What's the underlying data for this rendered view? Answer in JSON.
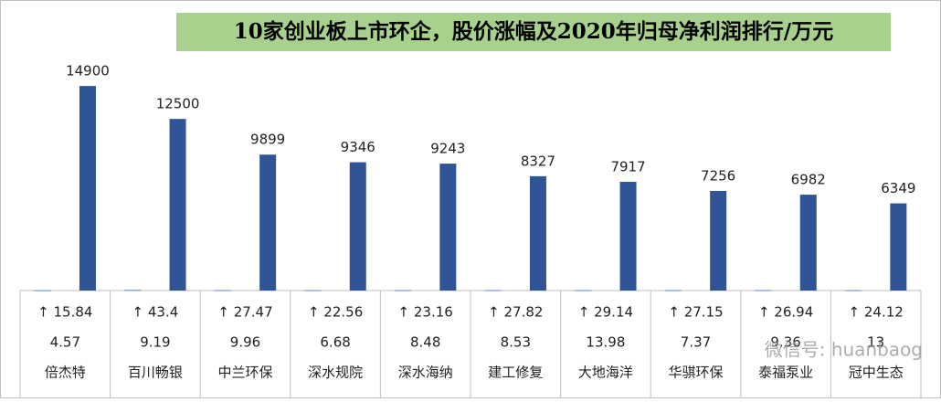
{
  "chart_data": {
    "type": "bar",
    "title": "10家创业板上市环企，股价涨幅及2020年归母净利润排行/万元",
    "categories": [
      "倍杰特",
      "百川畅银",
      "中兰环保",
      "深水规院",
      "深水海纳",
      "建工修复",
      "大地海洋",
      "华骐环保",
      "泰福泵业",
      "冠中生态"
    ],
    "series": [
      {
        "color": "#4472c4",
        "values": [
          15.84,
          43.4,
          27.47,
          22.56,
          23.16,
          27.82,
          29.14,
          27.15,
          26.94,
          24.12
        ],
        "value_labels": [
          "↑ 15.84",
          "↑ 43.4",
          "↑ 27.47",
          "↑ 22.56",
          "↑ 23.16",
          "↑ 27.82",
          "↑ 29.14",
          "↑ 27.15",
          "↑ 26.94",
          "↑ 24.12"
        ]
      },
      {
        "color": "#2f5597",
        "values": [
          14900,
          12500,
          9899,
          9346,
          9243,
          8327,
          7917,
          7256,
          6982,
          6349
        ]
      }
    ],
    "extra_row": [
      4.57,
      9.19,
      9.96,
      6.68,
      8.48,
      8.53,
      13.98,
      7.37,
      9.36,
      13
    ],
    "ylim": [
      0,
      18500
    ],
    "watermark": "微信号: huanbaog"
  }
}
